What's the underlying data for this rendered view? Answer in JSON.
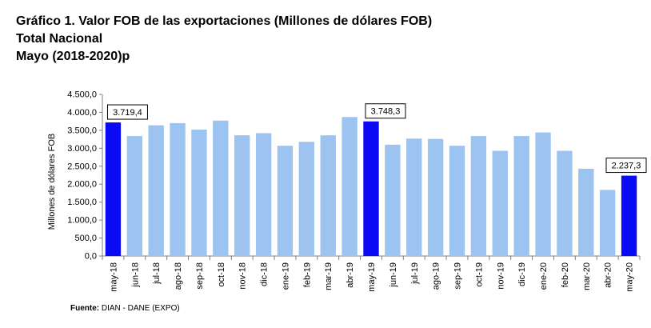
{
  "header": {
    "line1": "Gráfico 1. Valor FOB de las exportaciones (Millones de dólares FOB)",
    "line2": "Total Nacional",
    "line3": "Mayo (2018-2020)p"
  },
  "source": {
    "label": "Fuente:",
    "text": " DIAN - DANE (EXPO)"
  },
  "chart_data": {
    "type": "bar",
    "ylabel": "Millones de dólares FOB",
    "xlabel": "",
    "ylim": [
      0,
      4500
    ],
    "ytick_step": 500,
    "ytick_labels": [
      "0,0",
      "500,0",
      "1.000,0",
      "1.500,0",
      "2.000,0",
      "2.500,0",
      "3.000,0",
      "3.500,0",
      "4.000,0",
      "4.500,0"
    ],
    "grid": false,
    "categories": [
      "may-18",
      "jun-18",
      "jul-18",
      "ago-18",
      "sep-18",
      "oct-18",
      "nov-18",
      "dic-18",
      "ene-19",
      "feb-19",
      "mar-19",
      "abr-19",
      "may-19",
      "jun-19",
      "jul-19",
      "ago-19",
      "sep-19",
      "oct-19",
      "nov-19",
      "dic-19",
      "ene-20",
      "feb-20",
      "mar-20",
      "abr-20",
      "may-20"
    ],
    "values": [
      3719.4,
      3340,
      3640,
      3700,
      3520,
      3770,
      3360,
      3420,
      3070,
      3180,
      3360,
      3870,
      3748.3,
      3100,
      3270,
      3260,
      3070,
      3340,
      2930,
      3340,
      3440,
      2930,
      2430,
      1840,
      2237.3
    ],
    "highlighted": [
      "may-18",
      "may-19",
      "may-20"
    ],
    "annotations": [
      {
        "category": "may-18",
        "label": "3.719,4"
      },
      {
        "category": "may-19",
        "label": "3.748,3"
      },
      {
        "category": "may-20",
        "label": "2.237,3"
      }
    ],
    "colors": {
      "normal": "#9DC3F0",
      "highlight": "#0A0AF5",
      "axis": "#808080"
    }
  }
}
